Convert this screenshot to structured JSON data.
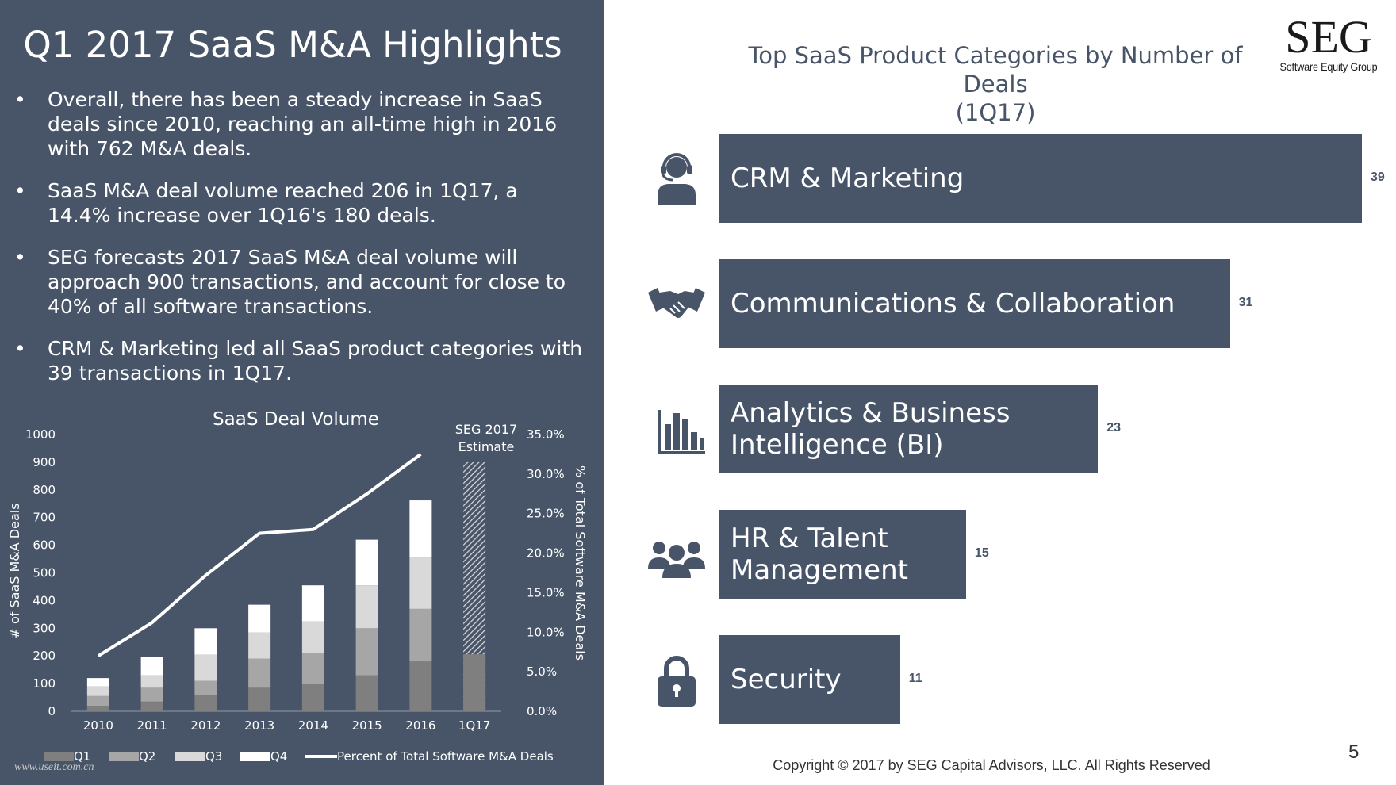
{
  "left": {
    "title": "Q1 2017 SaaS M&A Highlights",
    "bullet_symbol": "•",
    "bullets": [
      "Overall, there has been a steady increase in SaaS deals since 2010, reaching an all-time high in 2016 with 762 M&A deals.",
      "SaaS M&A deal volume reached 206 in 1Q17, a 14.4% increase over 1Q16's 180 deals.",
      "SEG forecasts 2017 SaaS M&A deal volume will approach 900 transactions, and account for close to 40% of all software transactions.",
      "CRM & Marketing led all SaaS product categories with 39 transactions in 1Q17."
    ]
  },
  "right": {
    "title_line1": "Top SaaS Product Categories by Number of Deals",
    "title_line2": "(1Q17)"
  },
  "logo": {
    "text": "SEG",
    "subtext": "Software Equity Group"
  },
  "chart_data": [
    {
      "type": "bar",
      "stacked": true,
      "title": "SaaS Deal Volume",
      "ylabel": "# of SaaS M&A Deals",
      "y2label": "% of Total Software M&A Deals",
      "ylim": [
        0,
        1000
      ],
      "y2lim": [
        0,
        35
      ],
      "yticks": [
        "0",
        "100",
        "200",
        "300",
        "400",
        "500",
        "600",
        "700",
        "800",
        "900",
        "1000"
      ],
      "y2ticks": [
        "0.0%",
        "5.0%",
        "10.0%",
        "15.0%",
        "20.0%",
        "25.0%",
        "30.0%",
        "35.0%"
      ],
      "categories": [
        "2010",
        "2011",
        "2012",
        "2013",
        "2014",
        "2015",
        "2016",
        "1Q17"
      ],
      "series": [
        {
          "name": "Q1",
          "values": [
            20,
            35,
            60,
            85,
            100,
            130,
            180,
            206
          ]
        },
        {
          "name": "Q2",
          "values": [
            35,
            50,
            50,
            105,
            110,
            170,
            190,
            0
          ]
        },
        {
          "name": "Q3",
          "values": [
            35,
            45,
            95,
            95,
            115,
            155,
            185,
            0
          ]
        },
        {
          "name": "Q4",
          "values": [
            30,
            65,
            95,
            100,
            130,
            165,
            207,
            0
          ]
        }
      ],
      "estimate": {
        "label_line1": "SEG 2017",
        "label_line2": "Estimate",
        "category": "1Q17",
        "value": 900
      },
      "line_series": {
        "name": "Percent of Total Software M&A Deals",
        "values": [
          7.0,
          11.2,
          17.2,
          22.5,
          23.0,
          27.5,
          32.5,
          null
        ]
      },
      "legend": [
        "Q1",
        "Q2",
        "Q3",
        "Q4",
        "Percent of Total Software M&A Deals"
      ],
      "colors": {
        "Q1": "#7f7f7f",
        "Q2": "#a6a6a6",
        "Q3": "#d9d9d9",
        "Q4": "#ffffff",
        "line": "#ffffff"
      }
    },
    {
      "type": "bar",
      "orientation": "horizontal",
      "title": "Top SaaS Product Categories by Number of Deals (1Q17)",
      "categories": [
        {
          "lines": [
            "CRM & Marketing"
          ],
          "icon": "headset-person-icon"
        },
        {
          "lines": [
            "Communications & Collaboration"
          ],
          "icon": "handshake-icon"
        },
        {
          "lines": [
            "Analytics & Business",
            "Intelligence (BI)"
          ],
          "icon": "bar-chart-icon"
        },
        {
          "lines": [
            "HR & Talent",
            "Management"
          ],
          "icon": "people-group-icon"
        },
        {
          "lines": [
            "Security"
          ],
          "icon": "padlock-icon"
        }
      ],
      "values": [
        39,
        31,
        23,
        15,
        11
      ],
      "xlim": [
        0,
        39
      ],
      "colors": {
        "bar": "#485568"
      }
    }
  ],
  "footer": {
    "copyright": "Copyright © 2017 by SEG Capital Advisors, LLC. All Rights Reserved",
    "page_number": "5",
    "watermark": "www.useit.com.cn"
  }
}
